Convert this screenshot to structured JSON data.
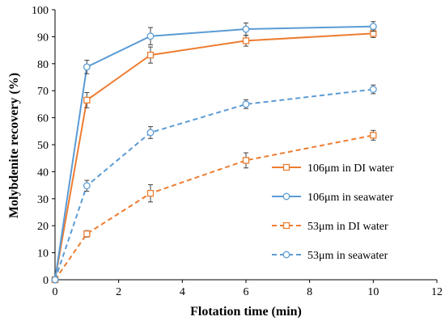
{
  "chart_data": {
    "type": "line",
    "xlabel": "Flotation time (min)",
    "ylabel": "Molybdenite recovery (%)",
    "xlim": [
      0,
      12
    ],
    "ylim": [
      0,
      100
    ],
    "xticks": [
      0,
      2,
      4,
      6,
      8,
      10,
      12
    ],
    "yticks": [
      0,
      10,
      20,
      30,
      40,
      50,
      60,
      70,
      80,
      90,
      100
    ],
    "grid": false,
    "legend_position": "right",
    "series": [
      {
        "name": "106μm in DI water",
        "color": "#ed7d31",
        "line": "solid",
        "marker": "square",
        "x": [
          0,
          1,
          3,
          6,
          10
        ],
        "y": [
          0,
          66.5,
          83.2,
          88.5,
          91.2
        ],
        "err": [
          0,
          2.8,
          3.0,
          2.0,
          1.5
        ]
      },
      {
        "name": "106μm in seawater",
        "color": "#5b9bd5",
        "line": "solid",
        "marker": "circle",
        "x": [
          0,
          1,
          3,
          6,
          10
        ],
        "y": [
          0,
          78.8,
          90.2,
          92.8,
          93.8
        ],
        "err": [
          0,
          2.5,
          3.2,
          2.3,
          1.8
        ]
      },
      {
        "name": "53μm in DI water",
        "color": "#ed7d31",
        "line": "dashed",
        "marker": "square",
        "x": [
          0,
          1,
          3,
          6,
          10
        ],
        "y": [
          0,
          17,
          32,
          44.2,
          53.5
        ],
        "err": [
          0,
          1.2,
          3.2,
          2.8,
          1.8
        ]
      },
      {
        "name": "53μm in seawater",
        "color": "#5b9bd5",
        "line": "dashed",
        "marker": "circle",
        "x": [
          0,
          1,
          3,
          6,
          10
        ],
        "y": [
          0,
          34.8,
          54.5,
          65.0,
          70.5
        ],
        "err": [
          0,
          2.0,
          2.2,
          1.6,
          1.6
        ]
      }
    ]
  }
}
